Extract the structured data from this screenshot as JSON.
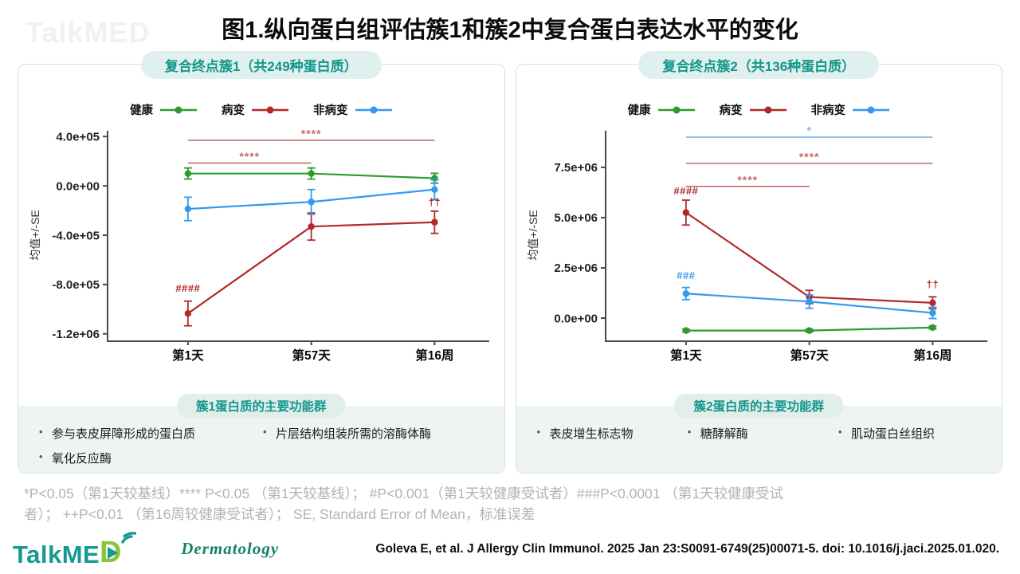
{
  "page": {
    "title": "图1.纵向蛋白组评估簇1和簇2中复合蛋白表达水平的变化",
    "watermark": "TalkMED",
    "footnote_line1": "*P<0.05（第1天较基线）**** P<0.05 （第1天较基线）； #P<0.001（第1天较健康受试者）###P<0.0001 （第1天较健康受试",
    "footnote_line2": "者）； ++P<0.01 （第16周较健康受试者）； SE, Standard Error of Mean，标准误差",
    "citation": "Goleva E, et al. J Allergy Clin Immunol. 2025 Jan 23:S0091-6749(25)00071-5. doi: 10.1016/j.jaci.2025.01.020.",
    "logo": {
      "brand_prefix": "TalkME",
      "brand_d": "D",
      "subtitle": "Dermatology"
    }
  },
  "colors": {
    "teal": "#13968d",
    "healthy_green": "#2e9b2e",
    "lesional_red": "#b22929",
    "nonlesional_blue": "#3399ee",
    "bracket_red": "#c96a6a",
    "bracket_blue": "#7ab8f5",
    "logo_green": "#8bc540"
  },
  "legend": [
    {
      "label": "健康",
      "color": "#2e9b2e"
    },
    {
      "label": "病变",
      "color": "#b22929"
    },
    {
      "label": "非病变",
      "color": "#3399ee"
    }
  ],
  "panels": [
    {
      "header": "复合终点簇1（共249种蛋白质）",
      "function_group": {
        "header": "簇1蛋白质的主要功能群",
        "items": [
          "参与表皮屏障形成的蛋白质",
          "片层结构组装所需的溶酶体酶",
          "氧化反应酶"
        ]
      }
    },
    {
      "header": "复合终点簇2（共136种蛋白质）",
      "function_group": {
        "header": "簇2蛋白质的主要功能群",
        "items": [
          "表皮增生标志物",
          "糖酵解酶",
          "肌动蛋白丝组织"
        ]
      }
    }
  ],
  "chart_data": [
    {
      "type": "line",
      "title": "复合终点簇1（共249种蛋白质）",
      "xlabel": "",
      "ylabel": "均值+/-SE",
      "x_categories": [
        "第1天",
        "第57天",
        "第16周"
      ],
      "ylim": [
        -1260000,
        460000
      ],
      "yticks": [
        {
          "v": 400000,
          "label": "4.0e+05"
        },
        {
          "v": 0,
          "label": "0.0e+00"
        },
        {
          "v": -400000,
          "label": "-4.0e+05"
        },
        {
          "v": -800000,
          "label": "-8.0e+05"
        },
        {
          "v": -1200000,
          "label": "-1.2e+06"
        }
      ],
      "series": [
        {
          "name": "健康",
          "color": "#2e9b2e",
          "values": [
            100000,
            100000,
            62000
          ],
          "se": [
            45000,
            45000,
            40000
          ]
        },
        {
          "name": "病变",
          "color": "#b22929",
          "values": [
            -1035000,
            -330000,
            -295000
          ],
          "se": [
            100000,
            110000,
            90000
          ]
        },
        {
          "name": "非病变",
          "color": "#3399ee",
          "values": [
            -187000,
            -130000,
            -30000
          ],
          "se": [
            95000,
            100000,
            80000
          ]
        }
      ],
      "annotations": [
        {
          "text": "####",
          "color": "#b22929",
          "xi": 0,
          "v": -860000
        },
        {
          "text": "††",
          "color": "#b22929",
          "xi": 2,
          "v": -160000
        }
      ],
      "brackets": [
        {
          "x1": 0,
          "x2": 2,
          "v": 370000,
          "label": "****",
          "color": "#c96a6a"
        },
        {
          "x1": 0,
          "x2": 1,
          "v": 185000,
          "label": "****",
          "color": "#c96a6a"
        }
      ]
    },
    {
      "type": "line",
      "title": "复合终点簇2（共136种蛋白质）",
      "xlabel": "",
      "ylabel": "均值+/-SE",
      "x_categories": [
        "第1天",
        "第57天",
        "第16周"
      ],
      "ylim": [
        -1150000,
        9400000
      ],
      "yticks": [
        {
          "v": 7500000,
          "label": "7.5e+06"
        },
        {
          "v": 5000000,
          "label": "5.0e+06"
        },
        {
          "v": 2500000,
          "label": "2.5e+06"
        },
        {
          "v": 0,
          "label": "0.0e+00"
        }
      ],
      "series": [
        {
          "name": "健康",
          "color": "#2e9b2e",
          "values": [
            -620000,
            -620000,
            -470000
          ],
          "se": [
            70000,
            70000,
            70000
          ]
        },
        {
          "name": "病变",
          "color": "#b22929",
          "values": [
            5250000,
            1050000,
            760000
          ],
          "se": [
            620000,
            330000,
            300000
          ]
        },
        {
          "name": "非病变",
          "color": "#3399ee",
          "values": [
            1220000,
            820000,
            260000
          ],
          "se": [
            300000,
            330000,
            280000
          ]
        }
      ],
      "annotations": [
        {
          "text": "####",
          "color": "#b22929",
          "xi": 0,
          "v": 6150000
        },
        {
          "text": "###",
          "color": "#3399ee",
          "xi": 0,
          "v": 1950000
        },
        {
          "text": "††",
          "color": "#b22929",
          "xi": 2,
          "v": 1500000
        }
      ],
      "brackets": [
        {
          "x1": 0,
          "x2": 2,
          "v": 9000000,
          "label": "*",
          "color": "#7ab8f5"
        },
        {
          "x1": 0,
          "x2": 2,
          "v": 7700000,
          "label": "****",
          "color": "#c96a6a"
        },
        {
          "x1": 0,
          "x2": 1,
          "v": 6550000,
          "label": "****",
          "color": "#c96a6a"
        }
      ]
    }
  ]
}
